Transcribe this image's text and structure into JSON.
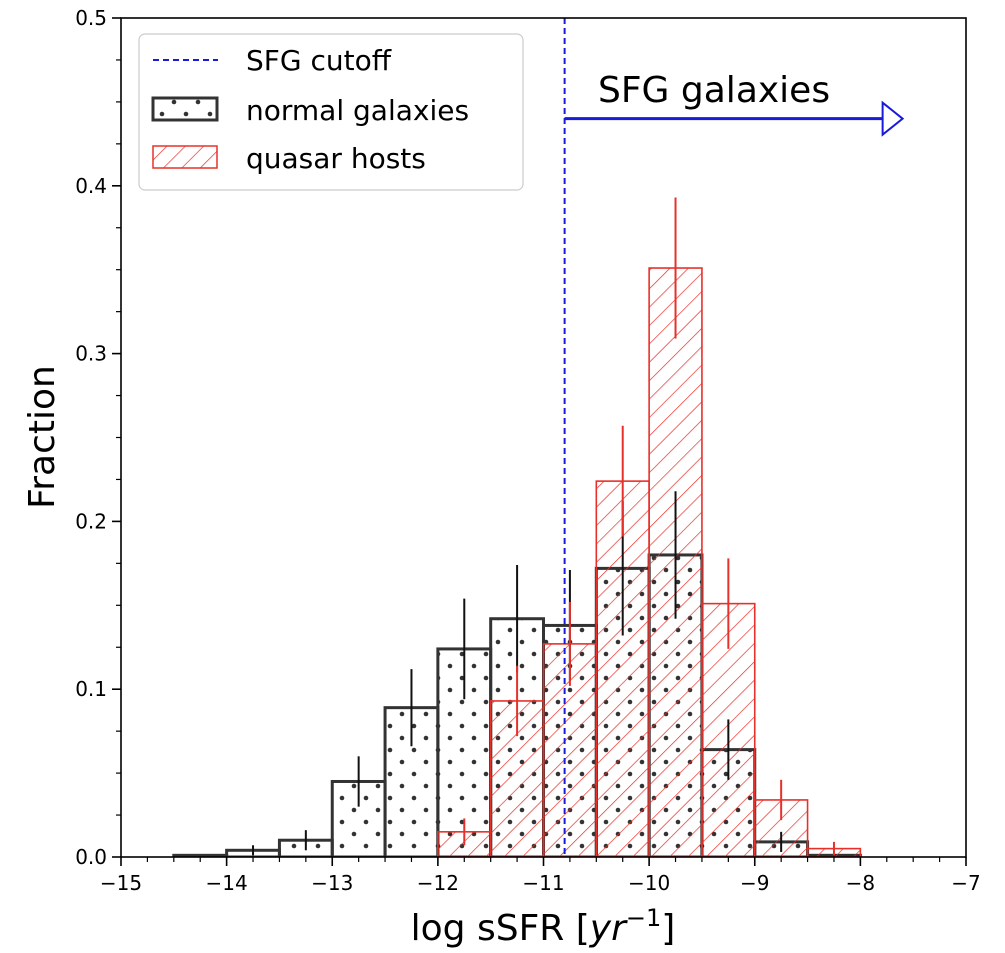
{
  "chart_data": {
    "type": "bar",
    "title": "",
    "xlabel": "log sSFR [yr−1]",
    "ylabel": "Fraction",
    "xlim": [
      -15,
      -7
    ],
    "ylim": [
      0,
      0.5
    ],
    "xticks": [
      -15,
      -14,
      -13,
      -12,
      -11,
      -10,
      -9,
      -8,
      -7
    ],
    "xtick_labels": [
      "−15",
      "−14",
      "−13",
      "−12",
      "−11",
      "−10",
      "−9",
      "−8",
      "−7"
    ],
    "yticks": [
      0.0,
      0.1,
      0.2,
      0.3,
      0.4,
      0.5
    ],
    "ytick_labels": [
      "0.0",
      "0.1",
      "0.2",
      "0.3",
      "0.4",
      "0.5"
    ],
    "bin_width": 0.5,
    "series": [
      {
        "name": "normal galaxies",
        "style": "dots",
        "color": "#333333",
        "bin_starts": [
          -14.5,
          -14.0,
          -13.5,
          -13.0,
          -12.5,
          -12.0,
          -11.5,
          -11.0,
          -10.5,
          -10.0,
          -9.5,
          -9.0,
          -8.5
        ],
        "values": [
          0.001,
          0.004,
          0.01,
          0.045,
          0.089,
          0.124,
          0.142,
          0.138,
          0.172,
          0.18,
          0.064,
          0.009,
          0.001
        ],
        "errors": [
          0.0,
          0.003,
          0.006,
          0.015,
          0.023,
          0.03,
          0.032,
          0.033,
          0.04,
          0.038,
          0.018,
          0.006,
          0.0
        ]
      },
      {
        "name": "quasar hosts",
        "style": "hatch",
        "color": "#e8302a",
        "bin_starts": [
          -12.0,
          -11.5,
          -11.0,
          -10.5,
          -10.0,
          -9.5,
          -9.0,
          -8.5
        ],
        "values": [
          0.015,
          0.093,
          0.127,
          0.224,
          0.351,
          0.151,
          0.034,
          0.005
        ],
        "errors": [
          0.008,
          0.021,
          0.025,
          0.033,
          0.042,
          0.027,
          0.012,
          0.004
        ]
      }
    ],
    "cutoff": {
      "name": "SFG cutoff",
      "x": -10.8,
      "color": "#1a1adb"
    },
    "annotation": {
      "text": "SFG galaxies",
      "arrow_from_x": -10.8,
      "arrow_to_x": -7.6,
      "y": 0.44,
      "color": "#1a1adb"
    },
    "legend": {
      "placement": "top-left",
      "entries": [
        "SFG cutoff",
        "normal galaxies",
        "quasar hosts"
      ]
    },
    "grid": false
  }
}
